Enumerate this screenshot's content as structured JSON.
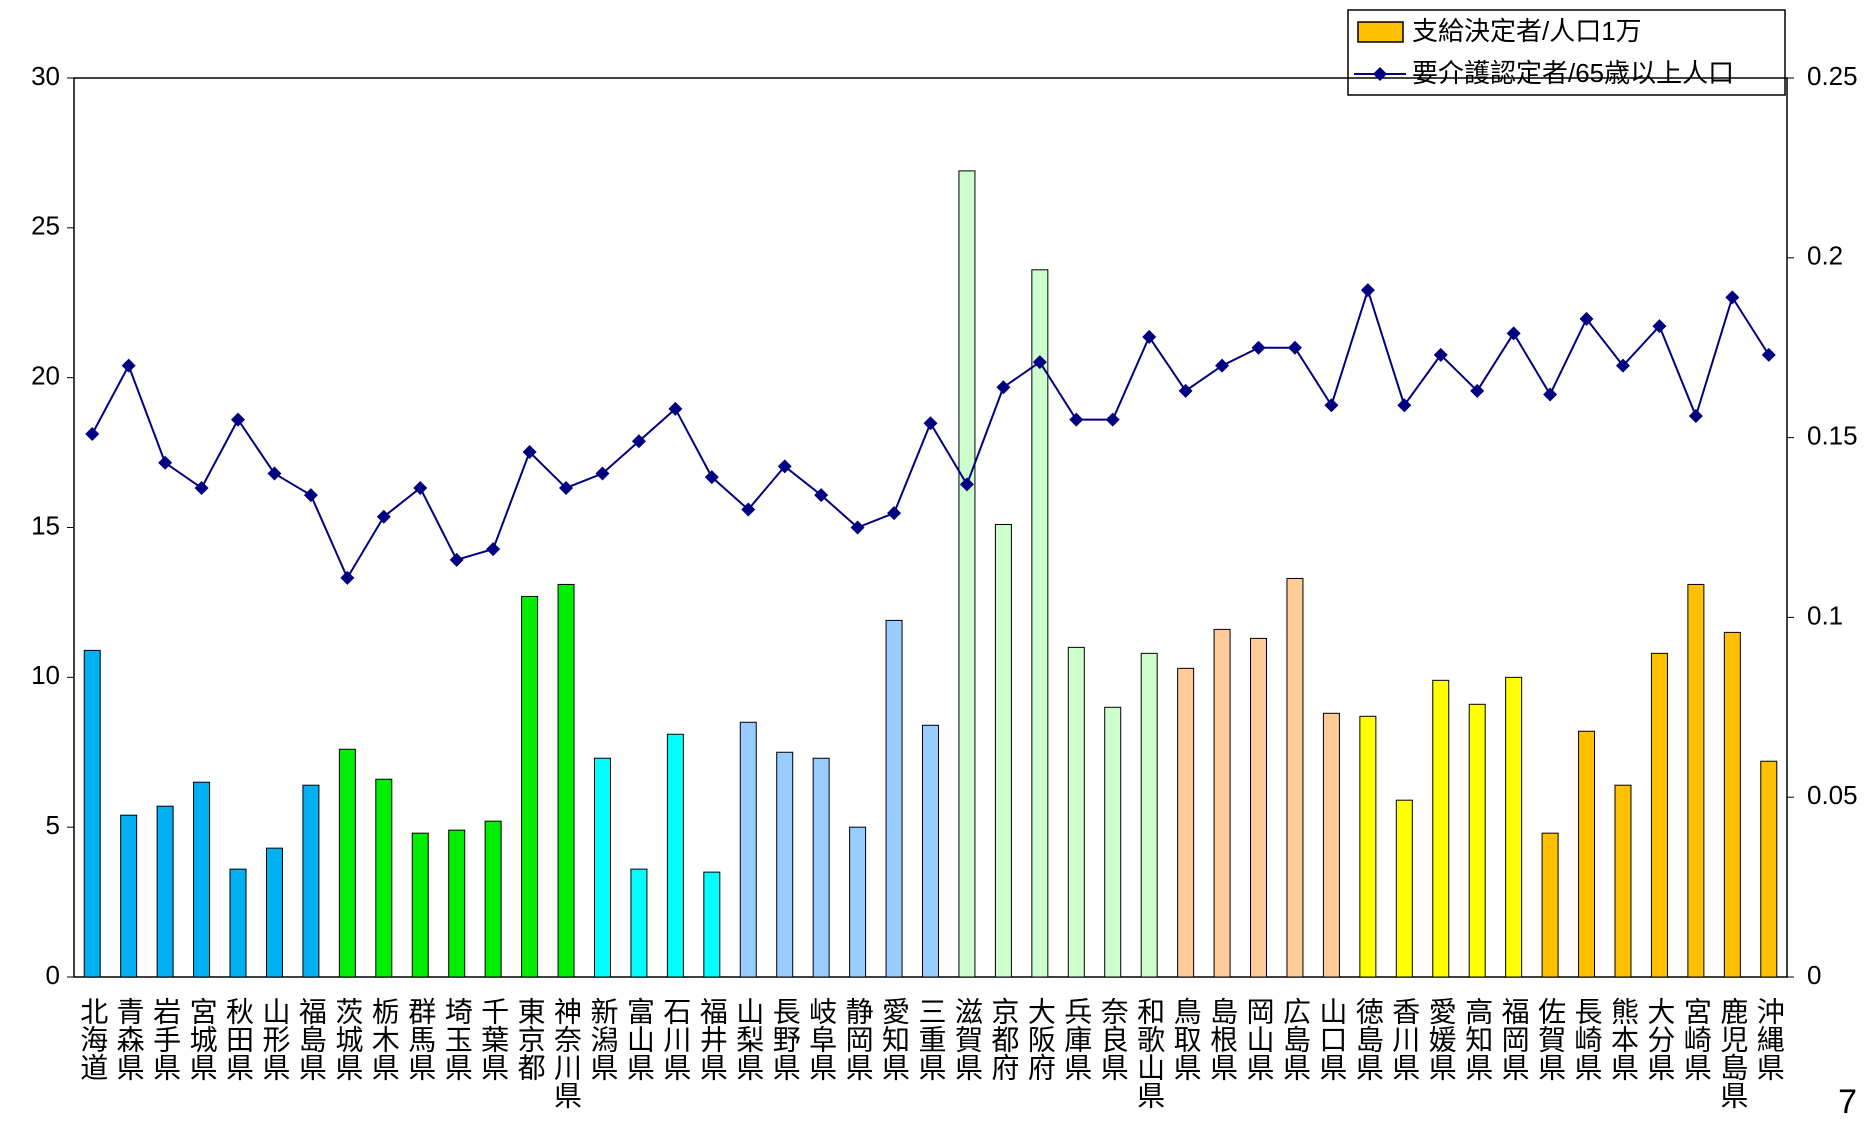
{
  "chart_data": {
    "type": "bar-line",
    "categories": [
      "北海道",
      "青森県",
      "岩手県",
      "宮城県",
      "秋田県",
      "山形県",
      "福島県",
      "茨城県",
      "栃木県",
      "群馬県",
      "埼玉県",
      "千葉県",
      "東京都",
      "神奈川県",
      "新潟県",
      "富山県",
      "石川県",
      "福井県",
      "山梨県",
      "長野県",
      "岐阜県",
      "静岡県",
      "愛知県",
      "三重県",
      "滋賀県",
      "京都府",
      "大阪府",
      "兵庫県",
      "奈良県",
      "和歌山県",
      "鳥取県",
      "島根県",
      "岡山県",
      "広島県",
      "山口県",
      "徳島県",
      "香川県",
      "愛媛県",
      "高知県",
      "福岡県",
      "佐賀県",
      "長崎県",
      "熊本県",
      "大分県",
      "宮崎県",
      "鹿児島県",
      "沖縄県"
    ],
    "series": [
      {
        "name": "支給決定者/人口1万",
        "color": "#ffc000",
        "bar_colors": [
          "#00b0f0",
          "#00b0f0",
          "#00b0f0",
          "#00b0f0",
          "#00b0f0",
          "#00b0f0",
          "#00b0f0",
          "#00ee00",
          "#00ee00",
          "#00ee00",
          "#00ee00",
          "#00ee00",
          "#00ee00",
          "#00ee00",
          "#00ffff",
          "#00ffff",
          "#00ffff",
          "#00ffff",
          "#99ccff",
          "#99ccff",
          "#99ccff",
          "#99ccff",
          "#99ccff",
          "#99ccff",
          "#ccffcc",
          "#ccffcc",
          "#ccffcc",
          "#ccffcc",
          "#ccffcc",
          "#ccffcc",
          "#ffcc99",
          "#ffcc99",
          "#ffcc99",
          "#ffcc99",
          "#ffcc99",
          "#ffff00",
          "#ffff00",
          "#ffff00",
          "#ffff00",
          "#ffff00",
          "#ffc000",
          "#ffc000",
          "#ffc000",
          "#ffc000",
          "#ffc000",
          "#ffc000",
          "#ffc000"
        ],
        "values": [
          10.9,
          5.4,
          5.7,
          6.5,
          3.6,
          4.3,
          6.4,
          7.6,
          6.6,
          4.8,
          4.9,
          5.2,
          12.7,
          13.1,
          7.3,
          3.6,
          8.1,
          3.5,
          8.5,
          7.5,
          7.3,
          5.0,
          11.9,
          8.4,
          26.9,
          15.1,
          23.6,
          11.0,
          9.0,
          10.8,
          10.3,
          11.6,
          11.3,
          13.3,
          8.8,
          8.7,
          5.9,
          9.9,
          9.1,
          10.0,
          4.8,
          8.2,
          6.4,
          10.8,
          13.1,
          11.5,
          7.2
        ]
      },
      {
        "name": "要介護認定者/65歳以上人口",
        "color": "#000080",
        "axis": "y2",
        "values": [
          0.151,
          0.17,
          0.143,
          0.136,
          0.155,
          0.14,
          0.134,
          0.111,
          0.128,
          0.136,
          0.116,
          0.119,
          0.146,
          0.136,
          0.14,
          0.149,
          0.158,
          0.139,
          0.13,
          0.142,
          0.134,
          0.125,
          0.129,
          0.154,
          0.137,
          0.164,
          0.171,
          0.155,
          0.155,
          0.178,
          0.163,
          0.17,
          0.175,
          0.175,
          0.159,
          0.191,
          0.159,
          0.173,
          0.163,
          0.179,
          0.162,
          0.183,
          0.17,
          0.181,
          0.156,
          0.189,
          0.173
        ]
      }
    ],
    "ylim": [
      0,
      30
    ],
    "yticks": [
      0,
      5,
      10,
      15,
      20,
      25,
      30
    ],
    "y2lim": [
      0,
      0.25
    ],
    "y2ticks": [
      0,
      0.05,
      0.1,
      0.15,
      0.2,
      0.25
    ],
    "page_number": "7"
  }
}
